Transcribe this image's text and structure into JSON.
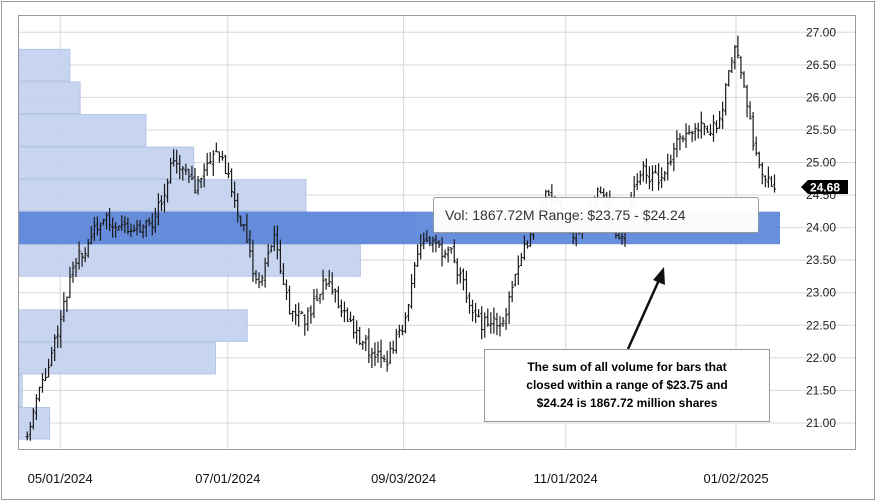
{
  "chart_data": {
    "type": "bar",
    "subtype": "price chart (OHLC) with volume-at-price histogram",
    "ylim": [
      20.6,
      27.25
    ],
    "y_ticks": [
      "21.00",
      "21.50",
      "22.00",
      "22.50",
      "23.00",
      "23.50",
      "24.00",
      "24.50",
      "25.00",
      "25.50",
      "26.00",
      "26.50",
      "27.00"
    ],
    "x_tick_labels": [
      "05/01/2024",
      "07/01/2024",
      "09/03/2024",
      "11/01/2024",
      "01/02/2025"
    ],
    "grid": true,
    "volume_profile": {
      "highlighted_range": [
        23.75,
        24.24
      ],
      "bins": [
        {
          "low": 20.75,
          "high": 21.24,
          "rel": 0.077
        },
        {
          "low": 21.25,
          "high": 21.74,
          "rel": 0.008
        },
        {
          "low": 21.75,
          "high": 22.24,
          "rel": 0.495
        },
        {
          "low": 22.25,
          "high": 22.74,
          "rel": 0.575
        },
        {
          "low": 22.75,
          "high": 23.24,
          "rel": 0.0
        },
        {
          "low": 23.25,
          "high": 23.74,
          "rel": 0.86
        },
        {
          "low": 23.75,
          "high": 24.24,
          "rel": 1.0
        },
        {
          "low": 24.25,
          "high": 24.74,
          "rel": 0.723
        },
        {
          "low": 24.75,
          "high": 25.24,
          "rel": 0.44
        },
        {
          "low": 25.25,
          "high": 25.74,
          "rel": 0.32
        },
        {
          "low": 25.75,
          "high": 26.24,
          "rel": 0.154
        },
        {
          "low": 26.25,
          "high": 26.74,
          "rel": 0.128
        }
      ]
    },
    "price_path": {
      "dates": [
        "2024-04-19",
        "2024-04-26",
        "2024-05-06",
        "2024-05-16",
        "2024-05-27",
        "2024-06-03",
        "2024-06-12",
        "2024-06-19",
        "2024-06-28",
        "2024-07-08",
        "2024-07-12",
        "2024-07-18",
        "2024-07-23",
        "2024-07-29",
        "2024-08-06",
        "2024-08-15",
        "2024-08-22",
        "2024-08-28",
        "2024-09-03",
        "2024-09-09",
        "2024-09-20",
        "2024-10-01",
        "2024-10-10",
        "2024-10-15",
        "2024-10-25",
        "2024-11-04",
        "2024-11-14",
        "2024-11-21",
        "2024-11-28",
        "2024-12-05",
        "2024-12-12",
        "2024-12-19",
        "2024-12-26",
        "2025-01-02",
        "2025-01-07",
        "2025-01-10",
        "2025-01-14",
        "2025-01-17"
      ],
      "closes": [
        20.9,
        21.8,
        23.4,
        24.1,
        24.0,
        24.0,
        25.1,
        24.6,
        25.2,
        23.8,
        23.0,
        23.9,
        22.8,
        22.6,
        23.2,
        22.5,
        22.1,
        22.0,
        22.5,
        23.8,
        23.6,
        22.5,
        22.6,
        23.5,
        24.5,
        23.9,
        24.6,
        23.7,
        24.9,
        24.7,
        25.3,
        25.6,
        25.5,
        26.8,
        25.6,
        25.0,
        24.7,
        24.68
      ]
    },
    "last_price": "24.68",
    "tooltip": "Vol: 1867.72M Range: $23.75 - $24.24",
    "annotation": [
      "The sum of all volume for bars that",
      "closed within a range of $23.75 and",
      "$24.24 is 1867.72 million shares"
    ]
  },
  "colors": {
    "bin_fill": "#c5d3f0",
    "bin_stroke": "#b3c3e6",
    "highlight_fill": "#5b86d8",
    "price_bar": "#1a1a1a",
    "grid": "#d8d8d8",
    "frame": "#9a9a9a",
    "tooltip_border": "#999999",
    "last_price_bg": "#000000"
  }
}
